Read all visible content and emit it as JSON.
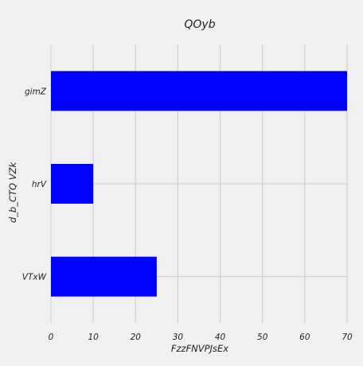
{
  "chart_data": {
    "type": "bar",
    "orientation": "horizontal",
    "title": "QOyb",
    "xlabel": "FzzFNVPJsEx",
    "ylabel": "d_b_CTQ VZk",
    "categories": [
      "gimZ",
      "hrV",
      "VTxW"
    ],
    "values": [
      70,
      10,
      25
    ],
    "xlim": [
      0,
      70
    ],
    "xticks": [
      0,
      10,
      20,
      30,
      40,
      50,
      60,
      70
    ],
    "grid": true,
    "legend": "none",
    "bar_color": "#0000ff",
    "background_color": "#f0f0f0"
  }
}
